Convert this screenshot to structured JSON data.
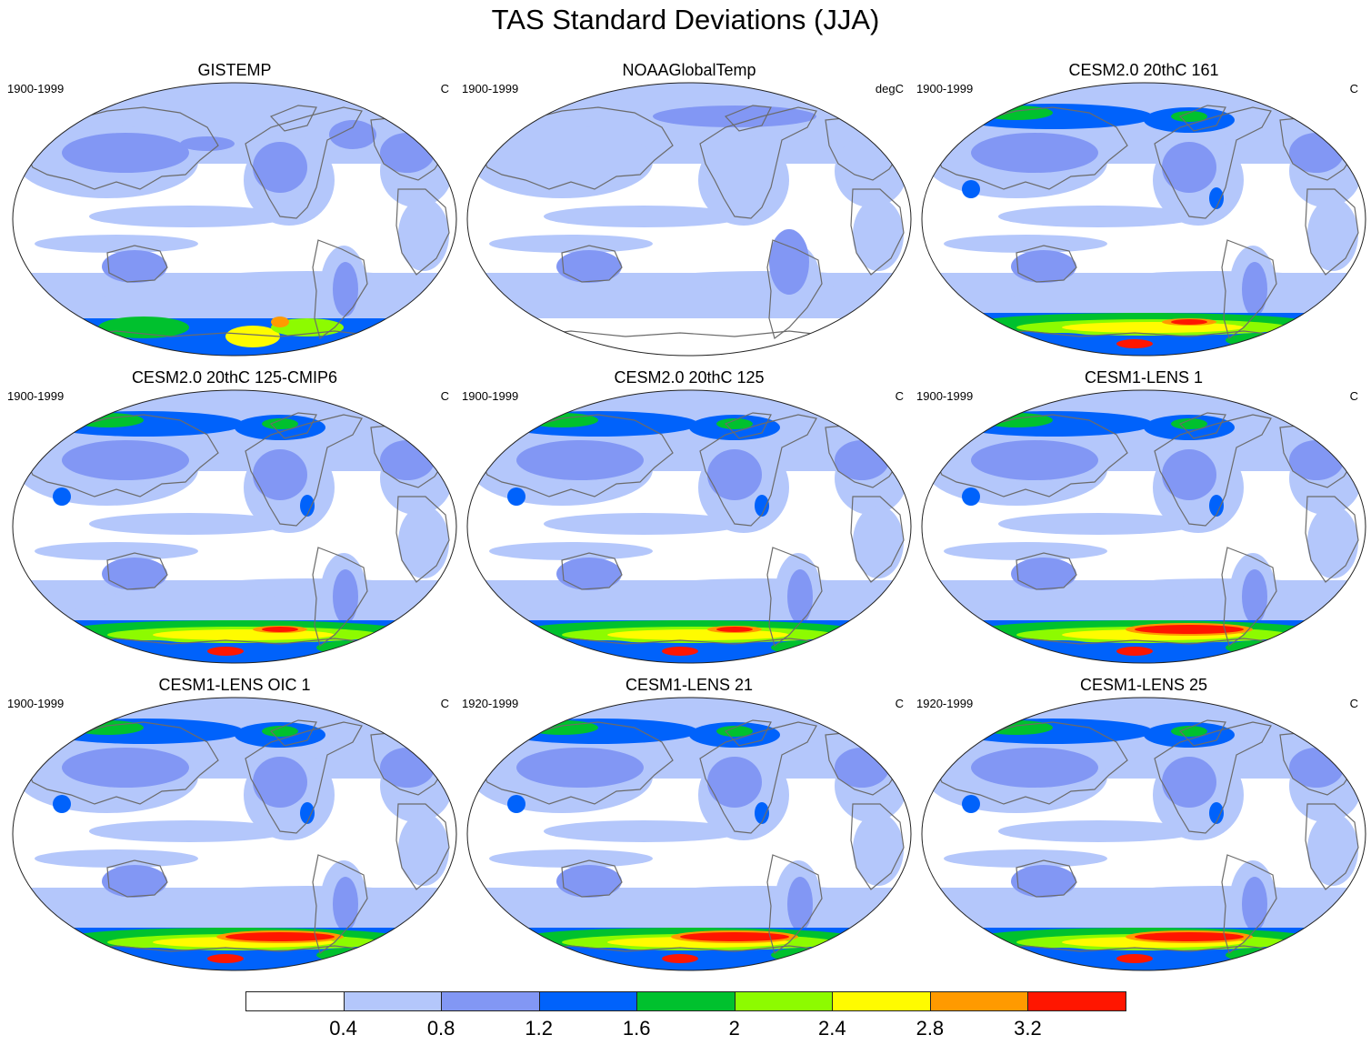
{
  "figure": {
    "title": "TAS Standard Deviations (JJA)"
  },
  "panels": [
    {
      "title": "GISTEMP",
      "period": "1900-1999",
      "units": "C",
      "dataset": "obs-gistemp"
    },
    {
      "title": "NOAAGlobalTemp",
      "period": "1900-1999",
      "units": "degC",
      "dataset": "obs-noaa"
    },
    {
      "title": "CESM2.0 20thC 161",
      "period": "1900-1999",
      "units": "C",
      "dataset": "cesm2-161"
    },
    {
      "title": "CESM2.0 20thC 125-CMIP6",
      "period": "1900-1999",
      "units": "C",
      "dataset": "cesm2-125cmip6"
    },
    {
      "title": "CESM2.0 20thC 125",
      "period": "1900-1999",
      "units": "C",
      "dataset": "cesm2-125"
    },
    {
      "title": "CESM1-LENS 1",
      "period": "1900-1999",
      "units": "C",
      "dataset": "lens-1"
    },
    {
      "title": "CESM1-LENS OIC 1",
      "period": "1900-1999",
      "units": "C",
      "dataset": "lens-oic1"
    },
    {
      "title": "CESM1-LENS 21",
      "period": "1920-1999",
      "units": "C",
      "dataset": "lens-21"
    },
    {
      "title": "CESM1-LENS 25",
      "period": "1920-1999",
      "units": "C",
      "dataset": "lens-25"
    }
  ],
  "colorbar": {
    "labels": [
      "0.4",
      "0.8",
      "1.2",
      "1.6",
      "2",
      "2.4",
      "2.8",
      "3.2"
    ],
    "colors": [
      "#ffffff",
      "#b4c7fb",
      "#8297f4",
      "#0062fb",
      "#00c12e",
      "#8dfb00",
      "#fffb00",
      "#ff9a00",
      "#ff1600"
    ]
  }
}
